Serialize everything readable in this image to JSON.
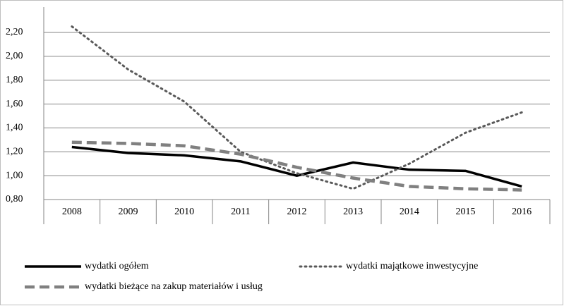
{
  "chart_data": {
    "type": "line",
    "categories": [
      "2008",
      "2009",
      "2010",
      "2011",
      "2012",
      "2013",
      "2014",
      "2015",
      "2016"
    ],
    "series": [
      {
        "name": "wydatki ogółem",
        "color": "#000000",
        "style": "solid",
        "values": [
          1.24,
          1.19,
          1.17,
          1.12,
          1.0,
          1.11,
          1.05,
          1.04,
          0.91
        ]
      },
      {
        "name": "wydatki majątkowe inwestycyjne",
        "color": "#595959",
        "style": "dotted",
        "values": [
          2.25,
          1.89,
          1.62,
          1.2,
          1.02,
          0.89,
          1.1,
          1.36,
          1.53
        ]
      },
      {
        "name": "wydatki bieżące na zakup materiałów i usług",
        "color": "#808080",
        "style": "dashed",
        "values": [
          1.28,
          1.27,
          1.25,
          1.18,
          1.07,
          0.98,
          0.91,
          0.89,
          0.88
        ]
      }
    ],
    "ylim": [
      0.8,
      2.2
    ],
    "yticks": [
      {
        "value": 0.8,
        "label": "0,80"
      },
      {
        "value": 1.0,
        "label": "1,00"
      },
      {
        "value": 1.2,
        "label": "1,20"
      },
      {
        "value": 1.4,
        "label": "1,40"
      },
      {
        "value": 1.6,
        "label": "1,60"
      },
      {
        "value": 1.8,
        "label": "1,80"
      },
      {
        "value": 2.0,
        "label": "2,00"
      },
      {
        "value": 2.2,
        "label": "2,20"
      }
    ],
    "grid": true,
    "legend": "bottom"
  }
}
